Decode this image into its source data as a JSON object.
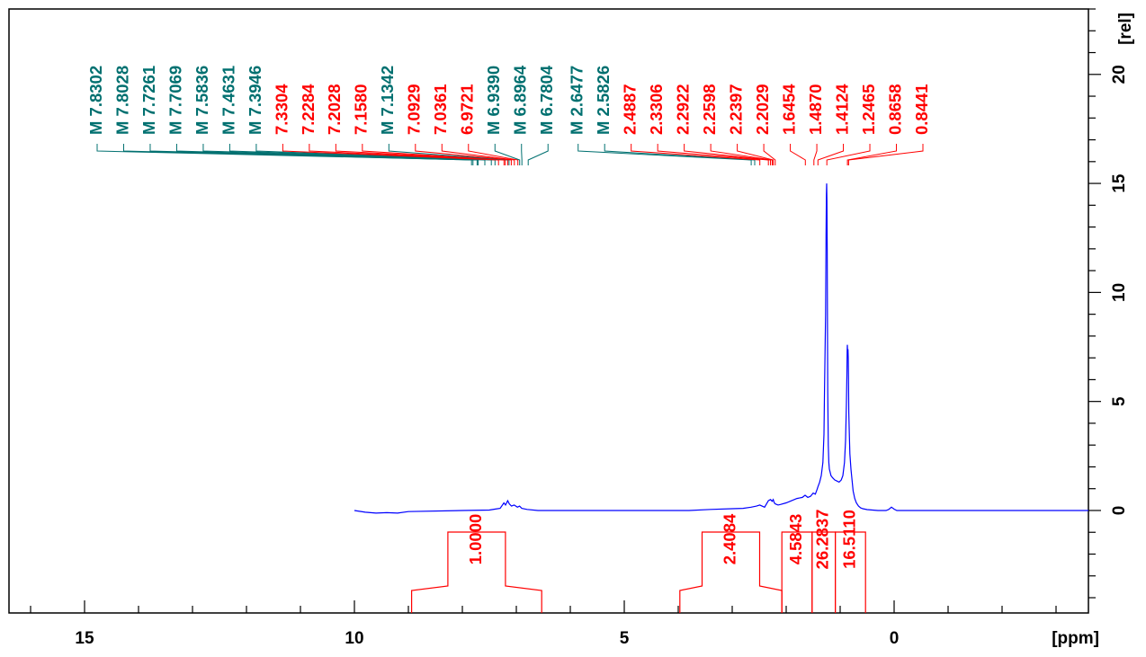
{
  "chart_data": {
    "type": "line",
    "title": "",
    "xlabel": "[ppm]",
    "ylabel": "[rel]",
    "xlim": [
      16.4,
      -3.6
    ],
    "ylim": [
      -4.7,
      23.0
    ],
    "x_reversed": true,
    "grid": false,
    "legend": "none",
    "x_ticks": [
      15,
      10,
      5,
      0
    ],
    "y_ticks": [
      0,
      5,
      10,
      15,
      20
    ],
    "colors": {
      "spectrum": "#0000ff",
      "integral": "#ff0000",
      "multiplet": "#007070",
      "frame": "#000000"
    },
    "spectrum": {
      "name": "",
      "x": [
        10.0,
        9.8,
        9.6,
        9.4,
        9.2,
        9.0,
        8.0,
        7.5,
        7.4,
        7.3,
        7.23,
        7.2,
        7.16,
        7.13,
        7.09,
        7.04,
        6.98,
        6.94,
        6.9,
        6.8,
        6.6,
        6.0,
        5.0,
        3.8,
        3.4,
        3.0,
        2.8,
        2.65,
        2.55,
        2.49,
        2.4,
        2.33,
        2.29,
        2.26,
        2.24,
        2.22,
        2.2,
        2.15,
        2.1,
        2.0,
        1.9,
        1.8,
        1.7,
        1.65,
        1.6,
        1.55,
        1.5,
        1.46,
        1.43,
        1.41,
        1.38,
        1.35,
        1.32,
        1.3,
        1.29,
        1.27,
        1.262,
        1.255,
        1.25,
        1.245,
        1.24,
        1.235,
        1.23,
        1.22,
        1.21,
        1.2,
        1.17,
        1.14,
        1.1,
        1.06,
        1.02,
        0.98,
        0.95,
        0.92,
        0.9,
        0.885,
        0.875,
        0.87,
        0.866,
        0.862,
        0.855,
        0.85,
        0.845,
        0.84,
        0.83,
        0.82,
        0.8,
        0.78,
        0.76,
        0.73,
        0.7,
        0.66,
        0.62,
        0.58,
        0.5,
        0.4,
        0.3,
        0.15,
        0.1,
        0.05,
        0.0,
        -0.05,
        -0.1,
        -3.6
      ],
      "values": [
        0.0,
        -0.08,
        -0.12,
        -0.1,
        -0.12,
        -0.05,
        0.0,
        0.02,
        0.06,
        0.1,
        0.35,
        0.25,
        0.45,
        0.3,
        0.2,
        0.25,
        0.15,
        0.2,
        0.1,
        0.05,
        0.0,
        0.0,
        0.0,
        0.0,
        0.05,
        0.08,
        0.1,
        0.15,
        0.2,
        0.25,
        0.15,
        0.45,
        0.5,
        0.42,
        0.5,
        0.35,
        0.3,
        0.25,
        0.28,
        0.35,
        0.45,
        0.55,
        0.6,
        0.7,
        0.6,
        0.65,
        0.8,
        0.75,
        0.95,
        1.1,
        1.3,
        1.6,
        2.2,
        3.5,
        5.5,
        9.0,
        12.5,
        14.5,
        15.0,
        14.2,
        12.0,
        8.5,
        5.5,
        3.0,
        2.2,
        1.9,
        1.6,
        1.5,
        1.4,
        1.35,
        1.3,
        1.4,
        1.6,
        2.2,
        3.2,
        4.8,
        6.2,
        7.3,
        7.6,
        7.2,
        7.4,
        7.0,
        6.0,
        4.5,
        3.5,
        2.6,
        1.9,
        1.4,
        0.9,
        0.55,
        0.35,
        0.2,
        0.12,
        0.08,
        0.04,
        0.02,
        0.0,
        0.0,
        0.05,
        0.15,
        0.06,
        0.0,
        0.0,
        0.0
      ]
    },
    "peak_labels": [
      {
        "text": "M 7.8302",
        "ppm": 7.8302,
        "kind": "multiplet"
      },
      {
        "text": "M 7.8028",
        "ppm": 7.8028,
        "kind": "multiplet"
      },
      {
        "text": "M 7.7261",
        "ppm": 7.7261,
        "kind": "multiplet"
      },
      {
        "text": "M 7.7069",
        "ppm": 7.7069,
        "kind": "multiplet"
      },
      {
        "text": "M 7.5836",
        "ppm": 7.5836,
        "kind": "multiplet"
      },
      {
        "text": "M 7.4631",
        "ppm": 7.4631,
        "kind": "multiplet"
      },
      {
        "text": "M 7.3946",
        "ppm": 7.3946,
        "kind": "multiplet"
      },
      {
        "text": "7.3304",
        "ppm": 7.3304,
        "kind": "peak"
      },
      {
        "text": "7.2284",
        "ppm": 7.2284,
        "kind": "peak"
      },
      {
        "text": "7.2028",
        "ppm": 7.2028,
        "kind": "peak"
      },
      {
        "text": "7.1580",
        "ppm": 7.158,
        "kind": "peak"
      },
      {
        "text": "M 7.1342",
        "ppm": 7.1342,
        "kind": "multiplet"
      },
      {
        "text": "7.0929",
        "ppm": 7.0929,
        "kind": "peak"
      },
      {
        "text": "7.0361",
        "ppm": 7.0361,
        "kind": "peak"
      },
      {
        "text": "6.9721",
        "ppm": 6.9721,
        "kind": "peak"
      },
      {
        "text": "M 6.9390",
        "ppm": 6.939,
        "kind": "multiplet"
      },
      {
        "text": "M 6.8964",
        "ppm": 6.8964,
        "kind": "multiplet"
      },
      {
        "text": "M 6.7804",
        "ppm": 6.7804,
        "kind": "multiplet"
      },
      {
        "text": "M 2.6477",
        "ppm": 2.6477,
        "kind": "multiplet"
      },
      {
        "text": "M 2.5826",
        "ppm": 2.5826,
        "kind": "multiplet"
      },
      {
        "text": "2.4887",
        "ppm": 2.4887,
        "kind": "peak"
      },
      {
        "text": "2.3306",
        "ppm": 2.3306,
        "kind": "peak"
      },
      {
        "text": "2.2922",
        "ppm": 2.2922,
        "kind": "peak"
      },
      {
        "text": "2.2598",
        "ppm": 2.2598,
        "kind": "peak"
      },
      {
        "text": "2.2397",
        "ppm": 2.2397,
        "kind": "peak"
      },
      {
        "text": "2.2029",
        "ppm": 2.2029,
        "kind": "peak"
      },
      {
        "text": "1.6454",
        "ppm": 1.6454,
        "kind": "peak"
      },
      {
        "text": "1.4870",
        "ppm": 1.487,
        "kind": "peak"
      },
      {
        "text": "1.4124",
        "ppm": 1.4124,
        "kind": "peak"
      },
      {
        "text": "1.2465",
        "ppm": 1.2465,
        "kind": "peak"
      },
      {
        "text": "0.8658",
        "ppm": 0.8658,
        "kind": "peak"
      },
      {
        "text": "0.8441",
        "ppm": 0.8441,
        "kind": "peak"
      }
    ],
    "integrals": [
      {
        "value": "1.0000",
        "from": 8.94,
        "to": 6.53
      },
      {
        "value": "2.4084",
        "from": 3.97,
        "to": 2.08
      },
      {
        "value": "4.5843",
        "from": 2.08,
        "to": 1.52
      },
      {
        "value": "26.2837",
        "from": 1.52,
        "to": 1.09
      },
      {
        "value": "16.5110",
        "from": 1.09,
        "to": 0.53
      }
    ]
  }
}
